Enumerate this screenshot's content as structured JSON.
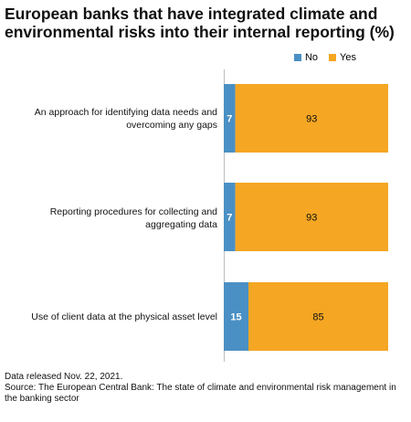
{
  "title": "European banks that have integrated climate and environmental risks into their internal reporting (%)",
  "legend": {
    "no_label": "No",
    "yes_label": "Yes"
  },
  "colors": {
    "no": "#4a90c4",
    "yes": "#f5a623"
  },
  "footer": {
    "line1": "Data released Nov. 22, 2021.",
    "line2": "Source: The European Central Bank: The state of climate and environmental risk management in the banking sector"
  },
  "chart_data": {
    "type": "bar",
    "orientation": "horizontal",
    "stacked": true,
    "categories": [
      "An approach for identifying data needs and overcoming any gaps",
      "Reporting procedures for collecting and aggregating data",
      "Use of client data at the physical asset level"
    ],
    "series": [
      {
        "name": "No",
        "values": [
          7,
          7,
          15
        ]
      },
      {
        "name": "Yes",
        "values": [
          93,
          93,
          85
        ]
      }
    ],
    "xlim": [
      0,
      100
    ],
    "legend_position": "top-right",
    "grid": false
  }
}
